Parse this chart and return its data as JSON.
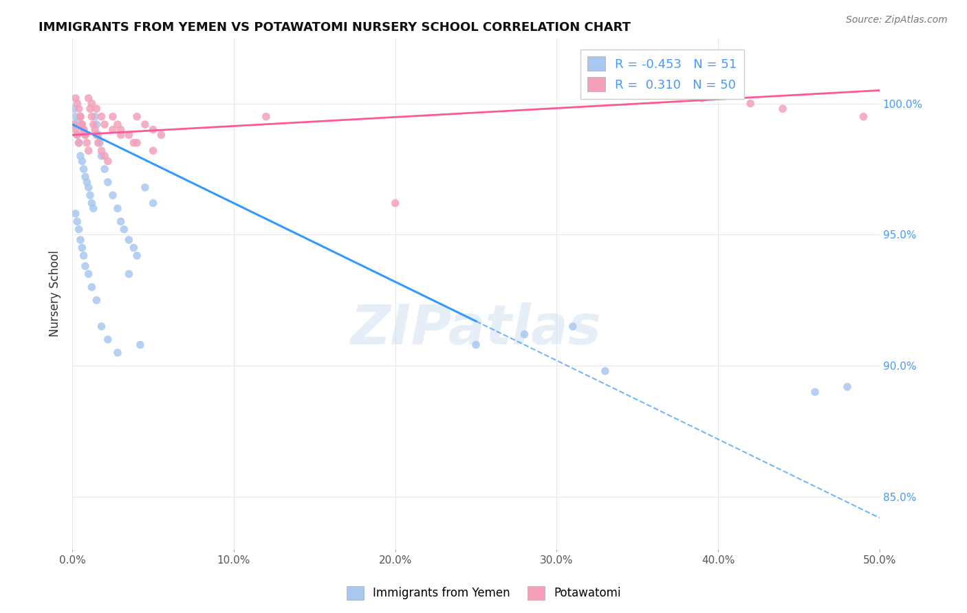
{
  "title": "IMMIGRANTS FROM YEMEN VS POTAWATOMI NURSERY SCHOOL CORRELATION CHART",
  "source": "Source: ZipAtlas.com",
  "ylabel": "Nursery School",
  "legend_items": [
    {
      "label": "Immigrants from Yemen",
      "color": "#a8c8f0",
      "R": -0.453,
      "N": 51
    },
    {
      "label": "Potawatomi",
      "color": "#f4a0b8",
      "R": 0.31,
      "N": 50
    }
  ],
  "blue_scatter_x": [
    0.001,
    0.002,
    0.003,
    0.003,
    0.004,
    0.005,
    0.006,
    0.007,
    0.008,
    0.009,
    0.01,
    0.011,
    0.012,
    0.013,
    0.014,
    0.015,
    0.016,
    0.017,
    0.018,
    0.02,
    0.022,
    0.025,
    0.028,
    0.03,
    0.032,
    0.035,
    0.038,
    0.04,
    0.045,
    0.05,
    0.002,
    0.003,
    0.004,
    0.005,
    0.006,
    0.007,
    0.008,
    0.01,
    0.012,
    0.015,
    0.018,
    0.022,
    0.028,
    0.035,
    0.042,
    0.25,
    0.28,
    0.31,
    0.33,
    0.46,
    0.48
  ],
  "blue_scatter_y": [
    99.8,
    99.5,
    99.3,
    98.8,
    98.5,
    98.0,
    97.8,
    97.5,
    97.2,
    97.0,
    96.8,
    96.5,
    96.2,
    96.0,
    99.5,
    99.2,
    98.8,
    98.5,
    98.0,
    97.5,
    97.0,
    96.5,
    96.0,
    95.5,
    95.2,
    94.8,
    94.5,
    94.2,
    96.8,
    96.2,
    95.8,
    95.5,
    95.2,
    94.8,
    94.5,
    94.2,
    93.8,
    93.5,
    93.0,
    92.5,
    91.5,
    91.0,
    90.5,
    93.5,
    90.8,
    90.8,
    91.2,
    91.5,
    89.8,
    89.0,
    89.2
  ],
  "pink_scatter_x": [
    0.001,
    0.002,
    0.003,
    0.004,
    0.005,
    0.006,
    0.007,
    0.008,
    0.009,
    0.01,
    0.011,
    0.012,
    0.013,
    0.014,
    0.015,
    0.016,
    0.018,
    0.02,
    0.022,
    0.025,
    0.028,
    0.03,
    0.035,
    0.038,
    0.04,
    0.045,
    0.05,
    0.055,
    0.002,
    0.003,
    0.004,
    0.005,
    0.006,
    0.007,
    0.008,
    0.01,
    0.012,
    0.015,
    0.018,
    0.02,
    0.025,
    0.03,
    0.04,
    0.05,
    0.2,
    0.39,
    0.42,
    0.44,
    0.49,
    0.12
  ],
  "pink_scatter_y": [
    99.2,
    99.0,
    98.8,
    98.5,
    99.5,
    99.2,
    99.0,
    98.8,
    98.5,
    98.2,
    99.8,
    99.5,
    99.2,
    99.0,
    98.8,
    98.5,
    98.2,
    98.0,
    97.8,
    99.5,
    99.2,
    99.0,
    98.8,
    98.5,
    99.5,
    99.2,
    99.0,
    98.8,
    100.2,
    100.0,
    99.8,
    99.5,
    99.2,
    99.0,
    98.8,
    100.2,
    100.0,
    99.8,
    99.5,
    99.2,
    99.0,
    98.8,
    98.5,
    98.2,
    96.2,
    100.2,
    100.0,
    99.8,
    99.5,
    99.5
  ],
  "blue_line_x0": 0.0,
  "blue_line_x_solid_end": 0.25,
  "blue_line_x1": 0.5,
  "blue_line_y0": 99.2,
  "blue_line_y_mid": 91.7,
  "blue_line_y1": 84.2,
  "pink_line_x0": 0.0,
  "pink_line_x1": 0.5,
  "pink_line_y0": 98.8,
  "pink_line_y1": 100.5,
  "xlim": [
    0.0,
    0.5
  ],
  "ylim": [
    83.0,
    102.5
  ],
  "xtick_vals": [
    0.0,
    0.1,
    0.2,
    0.3,
    0.4,
    0.5
  ],
  "xtick_labels": [
    "0.0%",
    "10.0%",
    "20.0%",
    "30.0%",
    "40.0%",
    "50.0%"
  ],
  "ytick_vals": [
    85.0,
    90.0,
    95.0,
    100.0
  ],
  "ytick_labels": [
    "85.0%",
    "90.0%",
    "95.0%",
    "100.0%"
  ],
  "watermark": "ZIPatlas",
  "blue_color": "#a8c8f0",
  "pink_color": "#f4a0b8",
  "blue_line_color": "#3399ff",
  "pink_line_color": "#ff5599",
  "background_color": "#ffffff",
  "grid_color": "#e8e8e8",
  "right_axis_color": "#4499ff"
}
